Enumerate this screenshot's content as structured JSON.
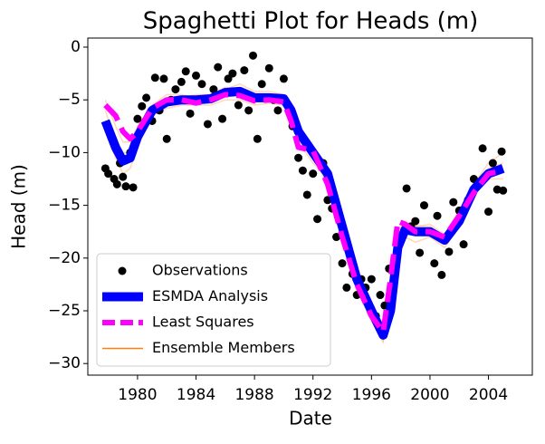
{
  "chart_data": {
    "type": "line",
    "title": "Spaghetti Plot for Heads (m)",
    "xlabel": "Date",
    "ylabel": "Head (m)",
    "xlim": [
      1976.6,
      2007.0
    ],
    "ylim": [
      -31.1,
      0.86
    ],
    "xticks": [
      1980,
      1984,
      1988,
      1992,
      1996,
      2000,
      2004
    ],
    "yticks": [
      0,
      {
        "value": -5,
        "label": "−5"
      },
      {
        "value": -10,
        "label": "−10"
      },
      {
        "value": -15,
        "label": "−15"
      },
      {
        "value": -20,
        "label": "−20"
      },
      {
        "value": -25,
        "label": "−25"
      },
      {
        "value": -30,
        "label": "−30"
      }
    ],
    "legend": "lower left",
    "x": [
      1977.8,
      1978.5,
      1979,
      1979.5,
      1980,
      1981,
      1982,
      1983,
      1984,
      1985,
      1986,
      1987,
      1988,
      1989,
      1990,
      1990.5,
      1991,
      1992,
      1993,
      1994,
      1995,
      1996,
      1996.8,
      1997.3,
      1997.8,
      1998.3,
      1999,
      2000,
      2001,
      2002,
      2003,
      2004,
      2005
    ],
    "series": [
      {
        "name": "Observations",
        "style": "marker",
        "color": "#000000",
        "x": [
          1977.8,
          1978,
          1978.2,
          1978.4,
          1978.6,
          1978.8,
          1979,
          1979.2,
          1979.5,
          1979.7,
          1980,
          1980.3,
          1980.6,
          1981,
          1981.2,
          1981.5,
          1981.8,
          1982,
          1982.3,
          1982.6,
          1983,
          1983.3,
          1983.6,
          1984,
          1984.4,
          1984.8,
          1985.2,
          1985.5,
          1985.8,
          1986.2,
          1986.5,
          1986.9,
          1987.3,
          1987.6,
          1987.9,
          1988.2,
          1988.5,
          1989,
          1989.3,
          1989.6,
          1990,
          1990.6,
          1991,
          1991.3,
          1991.6,
          1992,
          1992.3,
          1992.7,
          1993,
          1993.3,
          1993.6,
          1994,
          1994.3,
          1994.7,
          1995,
          1995.3,
          1995.6,
          1996,
          1996.3,
          1996.6,
          1996.9,
          1997.2,
          1997.6,
          1998,
          1998.4,
          1998.7,
          1999,
          1999.3,
          1999.6,
          2000,
          2000.3,
          2000.5,
          2000.8,
          2001,
          2001.3,
          2001.6,
          2002,
          2002.3,
          2002.6,
          2003,
          2003.3,
          2003.6,
          2004,
          2004.3,
          2004.6,
          2004.9,
          2005
        ],
        "values": [
          -11.5,
          -12,
          -8.5,
          -12.5,
          -13,
          -11,
          -12.3,
          -13.2,
          -10,
          -13.3,
          -6.8,
          -5.6,
          -4.8,
          -7,
          -2.9,
          -6,
          -3,
          -8.7,
          -5,
          -4,
          -3.3,
          -2.3,
          -6.3,
          -2.7,
          -3.5,
          -7.3,
          -4,
          -1.9,
          -6.8,
          -3,
          -2.5,
          -5.5,
          -2.2,
          -6,
          -0.8,
          -8.7,
          -3.5,
          -2,
          -5,
          -6,
          -3,
          -7.5,
          -10.5,
          -11.7,
          -14,
          -12,
          -16.3,
          -11,
          -14.5,
          -15.3,
          -18,
          -20.5,
          -22.8,
          -21.5,
          -23.5,
          -22,
          -22.8,
          -22,
          -25.5,
          -23.5,
          -24.5,
          -21,
          -20.6,
          -18,
          -13.4,
          -17,
          -16.5,
          -19.5,
          -15,
          -17.5,
          -20.5,
          -16,
          -21.6,
          -18.3,
          -19.4,
          -14.7,
          -15.5,
          -18.7,
          -14.5,
          -12.5,
          -13,
          -9.6,
          -15.6,
          -11,
          -13.5,
          -9.9,
          -13.6
        ]
      },
      {
        "name": "ESMDA Analysis",
        "style": "solid",
        "color": "#0000ff",
        "values": [
          -7,
          -9.5,
          -10.8,
          -10.5,
          -8.5,
          -6,
          -5.2,
          -5,
          -5,
          -4.9,
          -4.3,
          -4.2,
          -4.8,
          -4.8,
          -4.9,
          -6,
          -8,
          -10,
          -12,
          -17,
          -22,
          -25,
          -27.3,
          -25,
          -19,
          -17.3,
          -17.5,
          -17.5,
          -18.3,
          -16.5,
          -13.5,
          -12,
          -11.5
        ]
      },
      {
        "name": "Least Squares",
        "style": "dashed",
        "color": "#ff00ff",
        "values": [
          -5.5,
          -6.5,
          -8,
          -8.7,
          -8,
          -5.8,
          -5,
          -5,
          -5.3,
          -5,
          -4.5,
          -4.6,
          -5.1,
          -5,
          -5.2,
          -7,
          -9.5,
          -9.8,
          -13,
          -18,
          -22.5,
          -25.5,
          -27,
          -22,
          -16.5,
          -16.8,
          -17.5,
          -17.5,
          -18,
          -16,
          -13.8,
          -12,
          -11.7
        ]
      },
      {
        "name": "Ensemble Members",
        "style": "thin",
        "color": "#ff7f0e",
        "members": [
          [
            -5,
            -7.5,
            -9,
            -9,
            -7.5,
            -5.5,
            -4.5,
            -4.5,
            -4.8,
            -4.5,
            -3.8,
            -4,
            -4.5,
            -4.5,
            -5,
            -6.5,
            -8.5,
            -10.5,
            -13,
            -18,
            -23,
            -26,
            -28,
            -24,
            -17.5,
            -16.5,
            -17,
            -17,
            -18,
            -16,
            -13,
            -11,
            -10
          ],
          [
            -8,
            -10.5,
            -12,
            -11.5,
            -9.5,
            -6.5,
            -5.8,
            -5.5,
            -5.5,
            -5.5,
            -5,
            -5,
            -5.5,
            -5.3,
            -5.5,
            -7,
            -9,
            -11,
            -12.5,
            -16.5,
            -21.5,
            -24.5,
            -26.5,
            -24,
            -19.5,
            -18,
            -18.5,
            -18,
            -19,
            -17,
            -14,
            -12.5,
            -12.5
          ],
          [
            -6,
            -9,
            -10,
            -10,
            -8,
            -5.8,
            -5,
            -4.8,
            -4.5,
            -4.5,
            -4,
            -3.5,
            -4.2,
            -4.2,
            -4.5,
            -5.8,
            -7.5,
            -9.5,
            -11.5,
            -17.5,
            -22.5,
            -25.5,
            -27.8,
            -25.5,
            -18.5,
            -17,
            -17,
            -16.8,
            -17.8,
            -15.5,
            -12.8,
            -11.5,
            -11
          ]
        ]
      }
    ]
  }
}
